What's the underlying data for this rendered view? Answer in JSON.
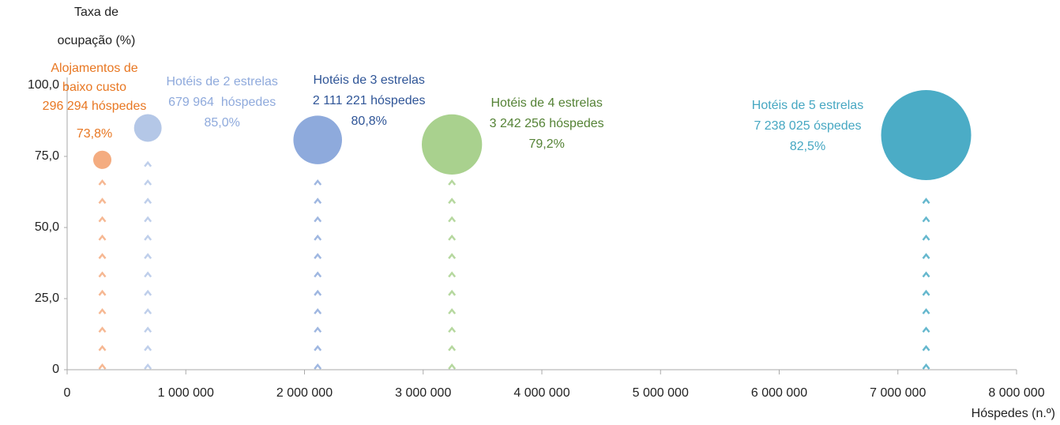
{
  "chart_data": {
    "type": "bubble",
    "y_label": "Taxa de ocupação (%)",
    "x_label": "Hóspedes (n.º)",
    "xlim": [
      0,
      8000000
    ],
    "xticks": [
      0,
      {
        "value": 1000000,
        "label": "1 000 000"
      },
      {
        "value": 2000000,
        "label": "2 000 000"
      },
      {
        "value": 3000000,
        "label": "3 000 000"
      },
      {
        "value": 4000000,
        "label": "4 000 000"
      },
      {
        "value": 5000000,
        "label": "5 000 000"
      },
      {
        "value": 6000000,
        "label": "6 000 000"
      },
      {
        "value": 7000000,
        "label": "7 000 000"
      },
      {
        "value": 8000000,
        "label": "8 000 000"
      }
    ],
    "ylim": [
      0,
      100
    ],
    "yticks": [
      0,
      {
        "value": 25,
        "label": "25,0"
      },
      {
        "value": 50,
        "label": "50,0"
      },
      {
        "value": 75,
        "label": "75,0"
      },
      {
        "value": 100,
        "label": "100,0"
      }
    ],
    "series": [
      {
        "name": "Alojamentos de baixo custo",
        "color": "#f4ac80",
        "label_color": "#e87722",
        "x": [
          296294
        ],
        "x_labels": [
          "296 294 hóspedes"
        ],
        "values": [
          73.8
        ],
        "value_labels": [
          "73,8%"
        ]
      },
      {
        "name": "Hotéis de 2 estrelas",
        "color": "#b4c7e7",
        "label_color": "#8faadc",
        "x": [
          679964
        ],
        "x_labels": [
          "679 964  hóspedes"
        ],
        "values": [
          85.0
        ],
        "value_labels": [
          "85,0%"
        ]
      },
      {
        "name": "Hotéis de 3 estrelas",
        "color": "#8eaadc",
        "label_color": "#2f5597",
        "x": [
          2111221
        ],
        "x_labels": [
          "2 111 221 hóspedes"
        ],
        "values": [
          80.8
        ],
        "value_labels": [
          "80,8%"
        ]
      },
      {
        "name": "Hotéis de 4 estrelas",
        "color": "#a9d18e",
        "label_color": "#548235",
        "x": [
          3242256
        ],
        "x_labels": [
          "3 242 256 hóspedes"
        ],
        "values": [
          79.2
        ],
        "value_labels": [
          "79,2%"
        ]
      },
      {
        "name": "Hotéis de 5 estrelas",
        "color": "#4bacc6",
        "label_color": "#46a7c2",
        "x": [
          7238025
        ],
        "x_labels": [
          "7 238 025 óspedes"
        ],
        "values": [
          82.5
        ],
        "value_labels": [
          "82,5%"
        ]
      }
    ]
  }
}
